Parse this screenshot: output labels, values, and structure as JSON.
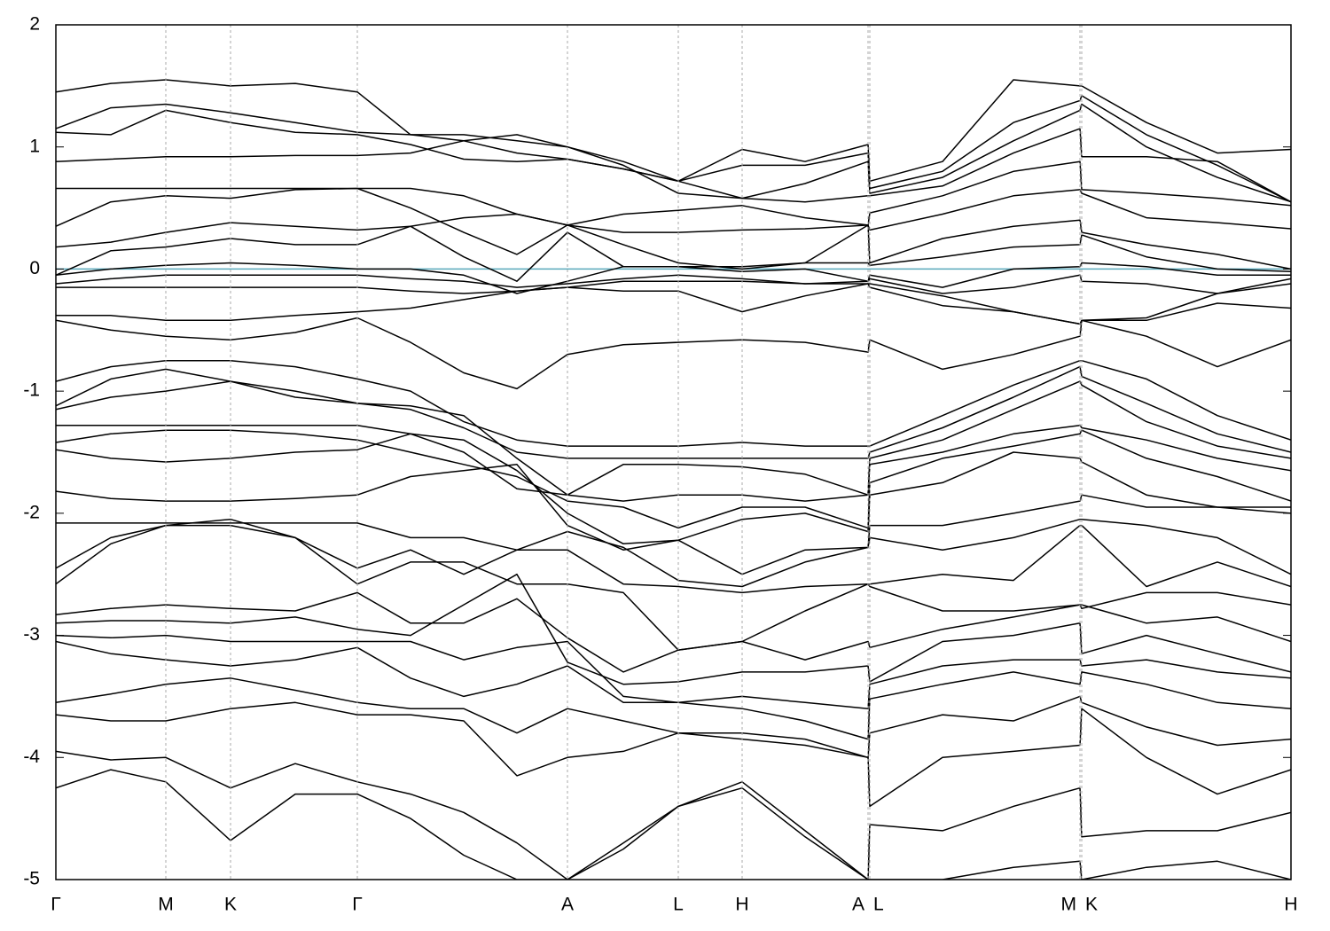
{
  "chart_data": {
    "type": "line",
    "color": "#000000",
    "reference_line": {
      "value": 0,
      "color": "#5aa9bb"
    },
    "grid": {
      "axis": "x",
      "style": "dashed",
      "color": "#aaaaaa"
    },
    "ylim": [
      -5,
      2
    ],
    "yticks": [
      -5,
      -4,
      -3,
      -2,
      -1,
      0,
      1,
      2
    ],
    "xlim": [
      0,
      1393
    ],
    "xticks": [
      {
        "value": 0,
        "label": "Γ"
      },
      {
        "value": 124,
        "label": "M"
      },
      {
        "value": 197,
        "label": "K"
      },
      {
        "value": 340,
        "label": "Γ"
      },
      {
        "value": 577,
        "label": "A"
      },
      {
        "value": 702,
        "label": "L"
      },
      {
        "value": 774,
        "label": "H"
      },
      {
        "value": 916,
        "label": "A"
      },
      {
        "value": 918,
        "label": "L"
      },
      {
        "value": 1155,
        "label": "M"
      },
      {
        "value": 1157,
        "label": "K"
      },
      {
        "value": 1393,
        "label": "H"
      }
    ],
    "x": [
      0,
      62,
      124,
      197,
      270,
      340,
      400,
      460,
      520,
      577,
      640,
      702,
      774,
      845,
      916,
      918,
      1000,
      1080,
      1155,
      1157,
      1230,
      1310,
      1393
    ],
    "series": [
      {
        "values": [
          1.45,
          1.52,
          1.55,
          1.5,
          1.52,
          1.45,
          1.1,
          1.1,
          1.05,
          1.0,
          0.88,
          0.72,
          0.98,
          0.88,
          1.02,
          0.72,
          0.88,
          1.55,
          1.5,
          1.5,
          1.2,
          0.95,
          0.98
        ]
      },
      {
        "values": [
          1.15,
          1.32,
          1.35,
          1.28,
          1.2,
          1.12,
          1.1,
          1.05,
          0.95,
          0.9,
          0.82,
          0.72,
          0.85,
          0.85,
          0.95,
          0.66,
          0.8,
          1.2,
          1.38,
          1.42,
          1.1,
          0.85,
          0.55
        ]
      },
      {
        "values": [
          1.12,
          1.1,
          1.3,
          1.2,
          1.12,
          1.1,
          1.02,
          0.9,
          0.88,
          0.9,
          0.82,
          0.72,
          0.58,
          0.7,
          0.88,
          0.62,
          0.75,
          1.05,
          1.3,
          1.35,
          1.0,
          0.75,
          0.55
        ]
      },
      {
        "values": [
          0.88,
          0.9,
          0.92,
          0.92,
          0.93,
          0.93,
          0.95,
          1.05,
          1.1,
          1.0,
          0.85,
          0.62,
          0.58,
          0.55,
          0.6,
          0.6,
          0.68,
          0.95,
          1.15,
          0.92,
          0.92,
          0.88,
          0.55
        ]
      },
      {
        "values": [
          0.66,
          0.66,
          0.66,
          0.66,
          0.66,
          0.66,
          0.66,
          0.6,
          0.45,
          0.36,
          0.45,
          0.48,
          0.52,
          0.42,
          0.36,
          0.46,
          0.6,
          0.8,
          0.88,
          0.65,
          0.62,
          0.58,
          0.52
        ]
      },
      {
        "values": [
          0.35,
          0.55,
          0.6,
          0.58,
          0.65,
          0.66,
          0.5,
          0.3,
          0.12,
          0.36,
          0.3,
          0.3,
          0.32,
          0.33,
          0.36,
          0.32,
          0.45,
          0.6,
          0.65,
          0.62,
          0.42,
          0.38,
          0.33
        ]
      },
      {
        "values": [
          0.18,
          0.22,
          0.3,
          0.38,
          0.35,
          0.32,
          0.35,
          0.42,
          0.45,
          0.36,
          0.2,
          0.05,
          0.0,
          0.05,
          0.36,
          0.05,
          0.25,
          0.35,
          0.4,
          0.3,
          0.2,
          0.12,
          0.0
        ]
      },
      {
        "values": [
          -0.05,
          0.15,
          0.18,
          0.25,
          0.2,
          0.2,
          0.35,
          0.1,
          -0.1,
          0.3,
          0.02,
          0.02,
          0.02,
          0.05,
          0.05,
          0.03,
          0.1,
          0.18,
          0.2,
          0.28,
          0.1,
          0.0,
          -0.02
        ]
      },
      {
        "values": [
          -0.05,
          0.0,
          0.03,
          0.05,
          0.03,
          0.0,
          0.0,
          -0.05,
          -0.2,
          -0.1,
          0.02,
          0.02,
          -0.02,
          0.0,
          -0.1,
          -0.05,
          -0.15,
          0.0,
          0.02,
          0.05,
          0.02,
          -0.05,
          -0.05
        ]
      },
      {
        "values": [
          -0.12,
          -0.08,
          -0.05,
          -0.05,
          -0.05,
          -0.05,
          -0.08,
          -0.1,
          -0.15,
          -0.12,
          -0.08,
          -0.05,
          -0.08,
          -0.12,
          -0.1,
          -0.08,
          -0.2,
          -0.15,
          -0.05,
          -0.1,
          -0.12,
          -0.2,
          -0.08
        ]
      },
      {
        "values": [
          -0.15,
          -0.15,
          -0.15,
          -0.15,
          -0.15,
          -0.15,
          -0.18,
          -0.2,
          -0.18,
          -0.15,
          -0.1,
          -0.1,
          -0.1,
          -0.12,
          -0.12,
          -0.12,
          -0.22,
          -0.35,
          -0.45,
          -0.42,
          -0.4,
          -0.2,
          -0.12
        ]
      },
      {
        "values": [
          -0.38,
          -0.38,
          -0.42,
          -0.42,
          -0.38,
          -0.35,
          -0.32,
          -0.25,
          -0.18,
          -0.15,
          -0.18,
          -0.18,
          -0.35,
          -0.22,
          -0.12,
          -0.15,
          -0.3,
          -0.35,
          -0.45,
          -0.42,
          -0.42,
          -0.28,
          -0.32
        ]
      },
      {
        "values": [
          -0.42,
          -0.5,
          -0.55,
          -0.58,
          -0.52,
          -0.4,
          -0.6,
          -0.85,
          -0.98,
          -0.7,
          -0.62,
          -0.6,
          -0.58,
          -0.6,
          -0.68,
          -0.58,
          -0.82,
          -0.7,
          -0.55,
          -0.42,
          -0.55,
          -0.8,
          -0.58
        ]
      },
      {
        "values": [
          -0.92,
          -0.8,
          -0.75,
          -0.75,
          -0.8,
          -0.9,
          -1.0,
          -1.25,
          -1.4,
          -1.45,
          -1.45,
          -1.45,
          -1.42,
          -1.45,
          -1.45,
          -1.45,
          -1.2,
          -0.95,
          -0.75,
          -0.75,
          -0.9,
          -1.2,
          -1.4
        ]
      },
      {
        "values": [
          -1.12,
          -0.9,
          -0.82,
          -0.92,
          -1.05,
          -1.1,
          -1.15,
          -1.3,
          -1.5,
          -1.55,
          -1.55,
          -1.55,
          -1.55,
          -1.55,
          -1.55,
          -1.5,
          -1.3,
          -1.05,
          -0.8,
          -0.88,
          -1.1,
          -1.35,
          -1.5
        ]
      },
      {
        "values": [
          -1.15,
          -1.05,
          -1.0,
          -0.92,
          -1.0,
          -1.1,
          -1.12,
          -1.2,
          -1.55,
          -1.85,
          -1.6,
          -1.6,
          -1.62,
          -1.68,
          -1.85,
          -1.55,
          -1.4,
          -1.15,
          -0.92,
          -0.95,
          -1.25,
          -1.45,
          -1.55
        ]
      },
      {
        "values": [
          -1.28,
          -1.28,
          -1.28,
          -1.28,
          -1.28,
          -1.28,
          -1.35,
          -1.5,
          -1.8,
          -1.85,
          -1.9,
          -1.85,
          -1.85,
          -1.9,
          -1.85,
          -1.6,
          -1.5,
          -1.35,
          -1.28,
          -1.3,
          -1.4,
          -1.55,
          -1.65
        ]
      },
      {
        "values": [
          -1.42,
          -1.35,
          -1.32,
          -1.32,
          -1.35,
          -1.4,
          -1.5,
          -1.6,
          -1.7,
          -1.9,
          -1.95,
          -2.12,
          -1.95,
          -1.95,
          -2.12,
          -1.75,
          -1.55,
          -1.45,
          -1.35,
          -1.32,
          -1.55,
          -1.7,
          -1.9
        ]
      },
      {
        "values": [
          -1.48,
          -1.55,
          -1.58,
          -1.55,
          -1.5,
          -1.48,
          -1.35,
          -1.4,
          -1.65,
          -2.0,
          -2.25,
          -2.22,
          -2.05,
          -2.0,
          -2.15,
          -1.85,
          -1.75,
          -1.5,
          -1.55,
          -1.58,
          -1.85,
          -1.95,
          -2.0
        ]
      },
      {
        "values": [
          -1.82,
          -1.88,
          -1.9,
          -1.9,
          -1.88,
          -1.85,
          -1.7,
          -1.65,
          -1.6,
          -2.1,
          -2.3,
          -2.22,
          -2.5,
          -2.3,
          -2.28,
          -2.1,
          -2.1,
          -2.0,
          -1.9,
          -1.85,
          -1.95,
          -1.95,
          -1.95
        ]
      },
      {
        "values": [
          -2.08,
          -2.08,
          -2.08,
          -2.08,
          -2.08,
          -2.08,
          -2.2,
          -2.2,
          -2.3,
          -2.15,
          -2.28,
          -2.55,
          -2.6,
          -2.4,
          -2.28,
          -2.2,
          -2.3,
          -2.2,
          -2.05,
          -2.05,
          -2.1,
          -2.2,
          -2.5
        ]
      },
      {
        "values": [
          -2.45,
          -2.2,
          -2.1,
          -2.05,
          -2.2,
          -2.45,
          -2.3,
          -2.5,
          -2.3,
          -2.3,
          -2.58,
          -2.6,
          -2.65,
          -2.6,
          -2.58,
          -2.58,
          -2.5,
          -2.55,
          -2.1,
          -2.1,
          -2.6,
          -2.4,
          -2.6
        ]
      },
      {
        "values": [
          -2.58,
          -2.25,
          -2.1,
          -2.1,
          -2.2,
          -2.58,
          -2.4,
          -2.4,
          -2.58,
          -2.58,
          -2.65,
          -3.12,
          -3.05,
          -2.8,
          -2.58,
          -2.6,
          -2.8,
          -2.8,
          -2.75,
          -2.78,
          -2.65,
          -2.65,
          -2.75
        ]
      },
      {
        "values": [
          -2.83,
          -2.78,
          -2.75,
          -2.78,
          -2.8,
          -2.65,
          -2.9,
          -2.9,
          -2.7,
          -3.02,
          -3.3,
          -3.12,
          -3.05,
          -3.2,
          -3.05,
          -3.1,
          -2.95,
          -2.85,
          -2.75,
          -2.75,
          -2.9,
          -2.85,
          -3.05
        ]
      },
      {
        "values": [
          -2.9,
          -2.88,
          -2.88,
          -2.9,
          -2.85,
          -2.95,
          -3.0,
          -2.75,
          -2.5,
          -3.22,
          -3.4,
          -3.38,
          -3.3,
          -3.3,
          -3.25,
          -3.38,
          -3.05,
          -3.0,
          -2.9,
          -3.15,
          -3.0,
          -3.15,
          -3.3
        ]
      },
      {
        "values": [
          -3.0,
          -3.02,
          -3.0,
          -3.05,
          -3.05,
          -3.05,
          -3.05,
          -3.2,
          -3.1,
          -3.05,
          -3.5,
          -3.55,
          -3.5,
          -3.55,
          -3.6,
          -3.4,
          -3.25,
          -3.2,
          -3.2,
          -3.25,
          -3.2,
          -3.3,
          -3.35
        ]
      },
      {
        "values": [
          -3.05,
          -3.15,
          -3.2,
          -3.25,
          -3.2,
          -3.1,
          -3.35,
          -3.5,
          -3.4,
          -3.25,
          -3.55,
          -3.55,
          -3.6,
          -3.7,
          -3.85,
          -3.52,
          -3.4,
          -3.3,
          -3.4,
          -3.3,
          -3.4,
          -3.55,
          -3.6
        ]
      },
      {
        "values": [
          -3.55,
          -3.48,
          -3.4,
          -3.35,
          -3.45,
          -3.55,
          -3.6,
          -3.6,
          -3.8,
          -3.6,
          -3.7,
          -3.8,
          -3.85,
          -3.9,
          -4.0,
          -3.8,
          -3.65,
          -3.7,
          -3.5,
          -3.55,
          -3.75,
          -3.9,
          -3.85
        ]
      },
      {
        "values": [
          -3.65,
          -3.7,
          -3.7,
          -3.6,
          -3.55,
          -3.65,
          -3.65,
          -3.7,
          -4.15,
          -4.0,
          -3.95,
          -3.8,
          -3.8,
          -3.85,
          -4.0,
          -4.4,
          -4.0,
          -3.95,
          -3.9,
          -3.6,
          -4.0,
          -4.3,
          -4.1
        ]
      },
      {
        "values": [
          -3.95,
          -4.02,
          -4.0,
          -4.25,
          -4.05,
          -4.2,
          -4.3,
          -4.45,
          -4.7,
          -5.0,
          -4.7,
          -4.4,
          -4.2,
          -4.6,
          -5.0,
          -4.55,
          -4.6,
          -4.4,
          -4.25,
          -4.65,
          -4.6,
          -4.6,
          -4.45
        ]
      },
      {
        "values": [
          -4.25,
          -4.1,
          -4.2,
          -4.68,
          -4.3,
          -4.3,
          -4.5,
          -4.8,
          -5.0,
          -5.0,
          -4.75,
          -4.4,
          -4.25,
          -4.65,
          -5.0,
          -5.0,
          -5.0,
          -4.9,
          -4.85,
          -5.0,
          -4.9,
          -4.85,
          -5.0
        ]
      }
    ]
  }
}
